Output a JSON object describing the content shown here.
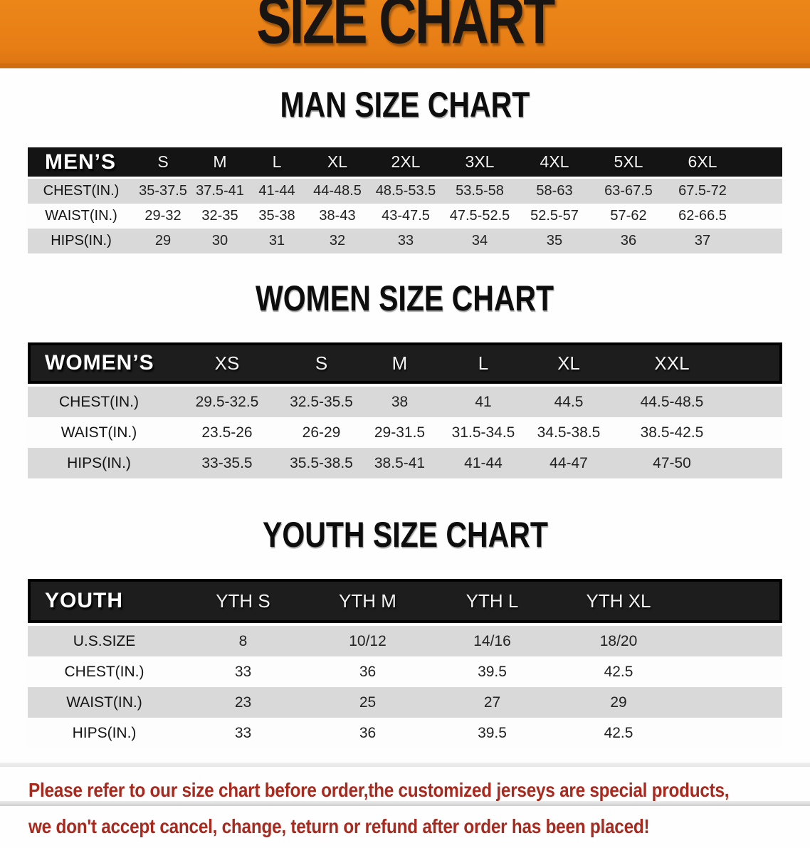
{
  "banner": {
    "title": "SIZE CHART",
    "bg_color": "#E67D15"
  },
  "colors": {
    "banner_orange": "#E67D15",
    "band_black": "#141414",
    "row_gray": "#D9D9D9",
    "disclaimer_red": "#A8291E"
  },
  "sections": [
    {
      "title": "MAN SIZE CHART",
      "header_label": "MEN’S",
      "columns": [
        "S",
        "M",
        "L",
        "XL",
        "2XL",
        "3XL",
        "4XL",
        "5XL",
        "6XL"
      ],
      "rows": [
        {
          "label": "CHEST(IN.)",
          "values": [
            "35-37.5",
            "37.5-41",
            "41-44",
            "44-48.5",
            "48.5-53.5",
            "53.5-58",
            "58-63",
            "63-67.5",
            "67.5-72"
          ]
        },
        {
          "label": "WAIST(IN.)",
          "values": [
            "29-32",
            "32-35",
            "35-38",
            "38-43",
            "43-47.5",
            "47.5-52.5",
            "52.5-57",
            "57-62",
            "62-66.5"
          ]
        },
        {
          "label": "HIPS(IN.)",
          "values": [
            "29",
            "30",
            "31",
            "32",
            "33",
            "34",
            "35",
            "36",
            "37"
          ]
        }
      ]
    },
    {
      "title": "WOMEN SIZE CHART",
      "header_label": "WOMEN’S",
      "columns": [
        "XS",
        "S",
        "M",
        "L",
        "XL",
        "XXL"
      ],
      "rows": [
        {
          "label": "CHEST(IN.)",
          "values": [
            "29.5-32.5",
            "32.5-35.5",
            "38",
            "41",
            "44.5",
            "44.5-48.5"
          ]
        },
        {
          "label": "WAIST(IN.)",
          "values": [
            "23.5-26",
            "26-29",
            "29-31.5",
            "31.5-34.5",
            "34.5-38.5",
            "38.5-42.5"
          ]
        },
        {
          "label": "HIPS(IN.)",
          "values": [
            "33-35.5",
            "35.5-38.5",
            "38.5-41",
            "41-44",
            "44-47",
            "47-50"
          ]
        }
      ]
    },
    {
      "title": "YOUTH SIZE CHART",
      "header_label": "YOUTH",
      "columns": [
        "YTH S",
        "YTH M",
        "YTH L",
        "YTH XL"
      ],
      "rows": [
        {
          "label": "U.S.SIZE",
          "values": [
            "8",
            "10/12",
            "14/16",
            "18/20"
          ]
        },
        {
          "label": "CHEST(IN.)",
          "values": [
            "33",
            "36",
            "39.5",
            "42.5"
          ]
        },
        {
          "label": "WAIST(IN.)",
          "values": [
            "23",
            "25",
            "27",
            "29"
          ]
        },
        {
          "label": "HIPS(IN.)",
          "values": [
            "33",
            "36",
            "39.5",
            "42.5"
          ]
        }
      ]
    }
  ],
  "disclaimer": {
    "line1": "Please refer to our size chart before order,the customized jerseys are special products,",
    "line2": "we don't accept cancel, change, teturn or refund after order has been placed!"
  }
}
